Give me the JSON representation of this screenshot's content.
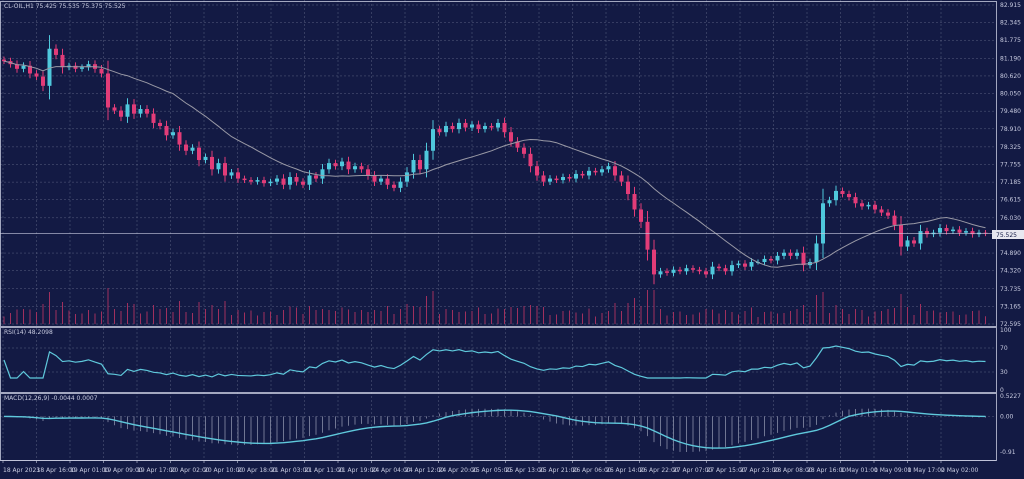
{
  "header": {
    "symbol_line": "CL-OIL,H1  75.425 75.535 75.375 75.525"
  },
  "rsi_label": "RSI(14) 48.2098",
  "macd_label": "MACD(12,26,9) -0.0044 0.0007",
  "current_price": "75.525",
  "colors": {
    "background": "#131a44",
    "bull": "#4fc8dc",
    "bear": "#e23c78",
    "ma": "#9a9aa6",
    "indicator": "#5fc9dc",
    "grid": "#5a6080"
  },
  "chart_data": {
    "type": "candlestick",
    "timeframe": "H1",
    "price_ticks": [
      "82.915",
      "82.345",
      "81.775",
      "81.190",
      "80.620",
      "80.050",
      "79.480",
      "78.910",
      "78.325",
      "77.755",
      "77.185",
      "76.615",
      "76.030",
      "75.525",
      "74.890",
      "74.320",
      "73.735",
      "73.165",
      "72.595"
    ],
    "ylim": [
      72.595,
      82.915
    ],
    "rsi_ticks": [
      "100",
      "70",
      "30",
      "0"
    ],
    "macd_ticks": [
      "0.5227",
      "0.00",
      "-0.91"
    ],
    "macd_range": [
      -0.91,
      0.5227
    ],
    "x_ticks": [
      "18 Apr 2023",
      "18 Apr 16:00",
      "19 Apr 01:00",
      "19 Apr 09:00",
      "19 Apr 17:00",
      "20 Apr 02:00",
      "20 Apr 10:00",
      "20 Apr 18:00",
      "21 Apr 03:00",
      "21 Apr 11:00",
      "21 Apr 19:00",
      "24 Apr 04:00",
      "24 Apr 12:00",
      "24 Apr 20:00",
      "25 Apr 05:00",
      "25 Apr 13:00",
      "25 Apr 21:00",
      "26 Apr 06:00",
      "26 Apr 14:00",
      "26 Apr 22:00",
      "27 Apr 07:00",
      "27 Apr 15:00",
      "27 Apr 23:00",
      "28 Apr 08:00",
      "28 Apr 16:00",
      "1 May 01:00",
      "1 May 09:00",
      "1 May 17:00",
      "2 May 02:00"
    ],
    "closes": [
      81.1,
      81.0,
      80.85,
      80.95,
      80.7,
      80.6,
      80.3,
      81.5,
      81.3,
      80.9,
      80.95,
      80.85,
      80.9,
      81.0,
      80.85,
      80.7,
      79.6,
      79.5,
      79.3,
      79.7,
      79.4,
      79.55,
      79.4,
      79.1,
      79.0,
      78.7,
      78.8,
      78.4,
      78.2,
      78.3,
      77.9,
      78.0,
      77.6,
      77.8,
      77.4,
      77.5,
      77.3,
      77.25,
      77.2,
      77.25,
      77.15,
      77.2,
      77.3,
      77.1,
      77.35,
      77.2,
      77.1,
      77.4,
      77.3,
      77.6,
      77.8,
      77.7,
      77.85,
      77.6,
      77.7,
      77.6,
      77.4,
      77.2,
      77.3,
      77.1,
      77.0,
      77.2,
      77.5,
      77.9,
      77.6,
      78.2,
      78.9,
      78.8,
      79.0,
      78.9,
      79.1,
      78.95,
      79.05,
      78.9,
      79.0,
      78.95,
      79.1,
      78.8,
      78.5,
      78.3,
      78.1,
      77.7,
      77.4,
      77.2,
      77.3,
      77.25,
      77.35,
      77.3,
      77.45,
      77.4,
      77.55,
      77.5,
      77.6,
      77.7,
      77.4,
      77.2,
      76.8,
      76.3,
      75.9,
      75.0,
      74.2,
      74.3,
      74.25,
      74.35,
      74.3,
      74.4,
      74.35,
      74.3,
      74.2,
      74.45,
      74.4,
      74.3,
      74.5,
      74.55,
      74.45,
      74.6,
      74.6,
      74.7,
      74.65,
      74.8,
      74.9,
      74.8,
      74.9,
      74.5,
      74.6,
      75.2,
      76.5,
      76.6,
      76.9,
      76.8,
      76.7,
      76.5,
      76.4,
      76.45,
      76.3,
      76.2,
      76.1,
      75.8,
      75.1,
      75.3,
      75.2,
      75.6,
      75.5,
      75.55,
      75.7,
      75.6,
      75.65,
      75.55,
      75.6,
      75.5,
      75.55,
      75.525
    ],
    "moving_average": "gray line",
    "indicators": [
      "RSI(14)",
      "MACD(12,26,9)"
    ]
  }
}
